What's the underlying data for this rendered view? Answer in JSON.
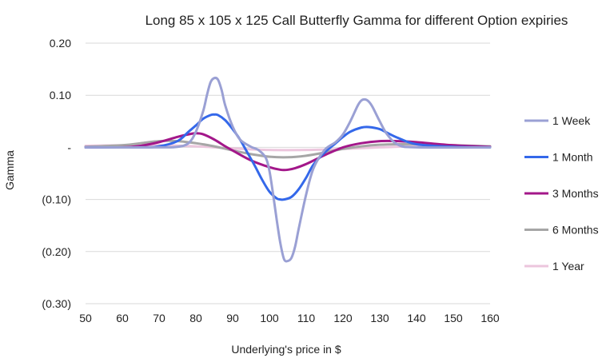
{
  "chart_data": {
    "type": "line",
    "title": "Long 85 x 105 x 125 Call Butterfly Gamma for different Option expiries",
    "xlabel": "Underlying's price in $",
    "ylabel": "Gamma",
    "xlim": [
      50,
      160
    ],
    "ylim": [
      -0.3,
      0.2
    ],
    "xticks": [
      50,
      60,
      70,
      80,
      90,
      100,
      110,
      120,
      130,
      140,
      150,
      160
    ],
    "xtick_labels": [
      "50",
      "60",
      "70",
      "80",
      "90",
      "100",
      "110",
      "120",
      "130",
      "140",
      "150",
      "160"
    ],
    "yticks": [
      0.2,
      0.1,
      0,
      -0.1,
      -0.2,
      -0.3
    ],
    "ytick_labels": [
      "0.20",
      "0.10",
      "-",
      "(0.10)",
      "(0.20)",
      "(0.30)"
    ],
    "grid": true,
    "legend_position": "right",
    "series": [
      {
        "name": "1 Week",
        "color": "#9aa0d4",
        "x": [
          50,
          70,
          75,
          78,
          80,
          82,
          83,
          84,
          85,
          86,
          87,
          88,
          90,
          92,
          95,
          97,
          99,
          100,
          101,
          102,
          103,
          104,
          105,
          106,
          107,
          108,
          110,
          112,
          115,
          118,
          120,
          122,
          124,
          125,
          126,
          127,
          128,
          130,
          132,
          135,
          140,
          160
        ],
        "y": [
          0,
          0,
          0.001,
          0.008,
          0.03,
          0.07,
          0.1,
          0.125,
          0.133,
          0.13,
          0.11,
          0.08,
          0.04,
          0.015,
          0.001,
          -0.005,
          -0.02,
          -0.045,
          -0.09,
          -0.14,
          -0.185,
          -0.215,
          -0.218,
          -0.212,
          -0.19,
          -0.155,
          -0.09,
          -0.04,
          -0.005,
          0.01,
          0.025,
          0.05,
          0.08,
          0.09,
          0.092,
          0.088,
          0.078,
          0.05,
          0.025,
          0.005,
          0,
          0
        ]
      },
      {
        "name": "1 Month",
        "color": "#3468ea",
        "x": [
          50,
          65,
          70,
          75,
          78,
          80,
          82,
          84,
          85,
          86,
          88,
          90,
          92,
          94,
          96,
          98,
          100,
          102,
          103,
          104,
          106,
          108,
          110,
          112,
          115,
          118,
          120,
          122,
          125,
          127,
          130,
          132,
          135,
          140,
          150,
          160
        ],
        "y": [
          0,
          0,
          0.002,
          0.012,
          0.03,
          0.042,
          0.055,
          0.062,
          0.063,
          0.062,
          0.052,
          0.035,
          0.015,
          -0.01,
          -0.035,
          -0.062,
          -0.085,
          -0.098,
          -0.1,
          -0.1,
          -0.095,
          -0.08,
          -0.058,
          -0.033,
          -0.01,
          0.008,
          0.02,
          0.03,
          0.038,
          0.039,
          0.035,
          0.028,
          0.018,
          0.006,
          0.001,
          0
        ]
      },
      {
        "name": "3 Months",
        "color": "#a3178a",
        "x": [
          50,
          60,
          65,
          70,
          75,
          78,
          80,
          82,
          85,
          88,
          90,
          95,
          100,
          103,
          105,
          107,
          110,
          115,
          120,
          125,
          130,
          135,
          140,
          150,
          160
        ],
        "y": [
          0,
          0,
          0.003,
          0.01,
          0.02,
          0.025,
          0.027,
          0.025,
          0.015,
          0.002,
          -0.006,
          -0.025,
          -0.038,
          -0.043,
          -0.043,
          -0.04,
          -0.032,
          -0.015,
          0,
          0.008,
          0.012,
          0.012,
          0.01,
          0.004,
          0.001
        ]
      },
      {
        "name": "6 Months",
        "color": "#a6a6a6",
        "x": [
          50,
          60,
          65,
          70,
          75,
          80,
          85,
          90,
          95,
          100,
          105,
          110,
          115,
          120,
          125,
          130,
          135,
          140,
          150,
          160
        ],
        "y": [
          0.001,
          0.004,
          0.008,
          0.012,
          0.012,
          0.008,
          0.002,
          -0.006,
          -0.013,
          -0.018,
          -0.019,
          -0.016,
          -0.01,
          -0.003,
          0.002,
          0.005,
          0.006,
          0.006,
          0.004,
          0.002
        ]
      },
      {
        "name": "1 Year",
        "color": "#ecc6dd",
        "x": [
          50,
          60,
          70,
          80,
          90,
          100,
          110,
          120,
          130,
          140,
          150,
          160
        ],
        "y": [
          0.003,
          0.004,
          0.004,
          0.002,
          -0.002,
          -0.005,
          -0.005,
          -0.003,
          0,
          0.002,
          0.002,
          0.002
        ]
      }
    ]
  }
}
